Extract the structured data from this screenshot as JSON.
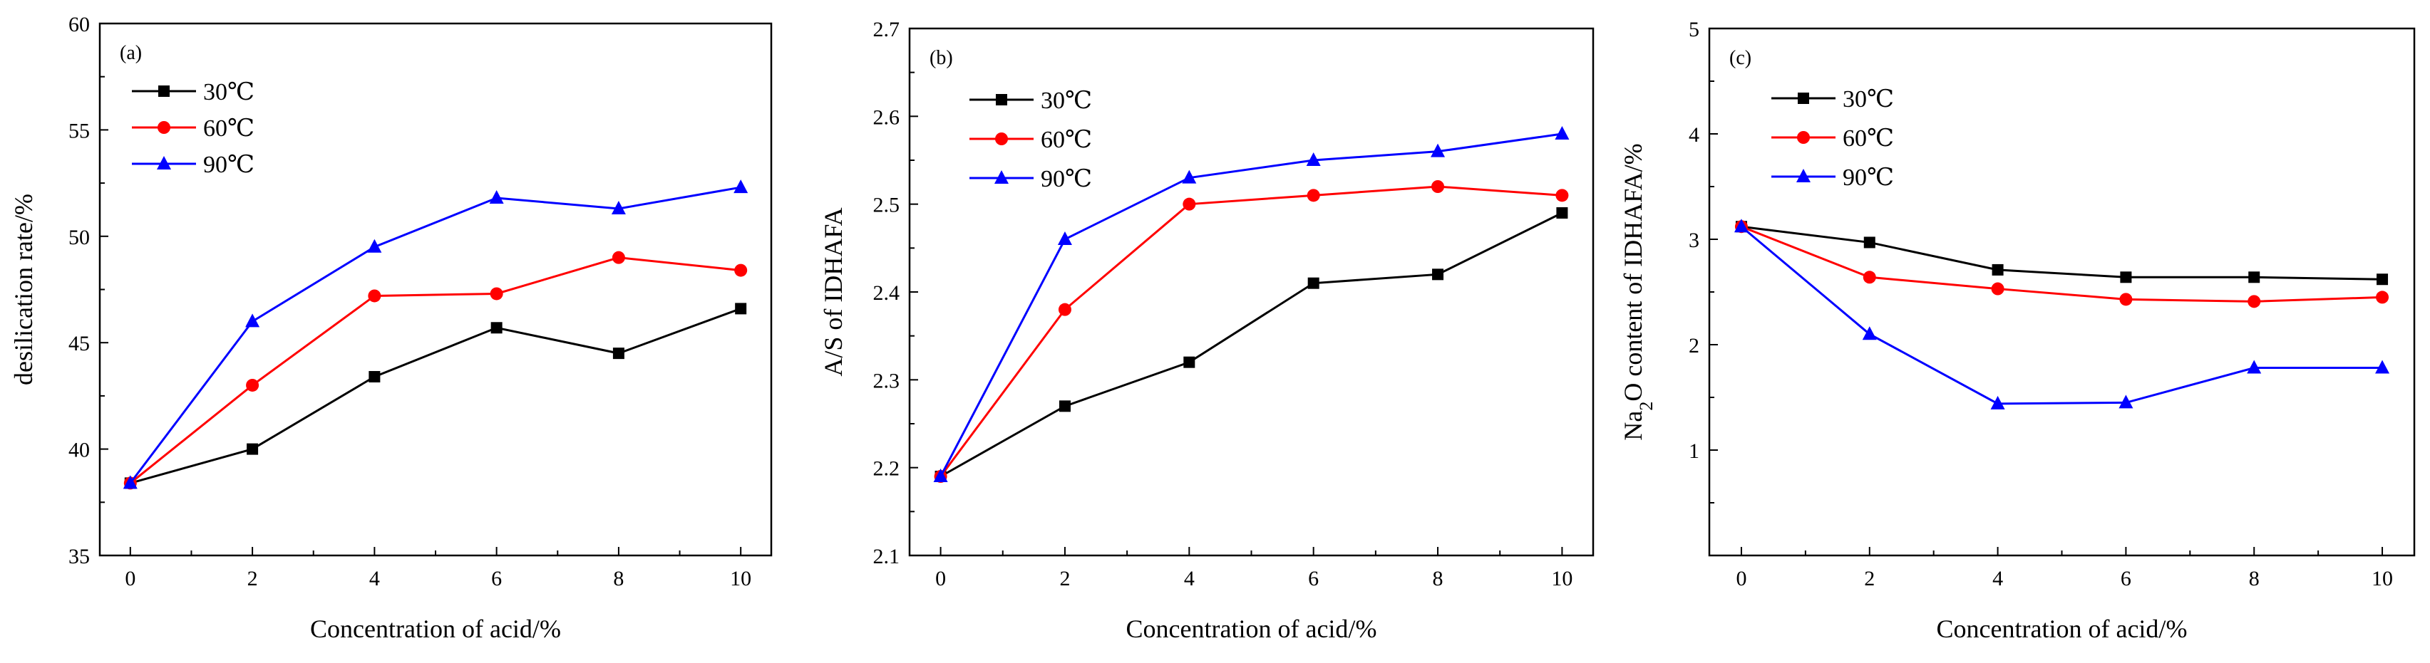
{
  "colors": {
    "s30": "#000000",
    "s60": "#ff0000",
    "s90": "#0000ff"
  },
  "chart_data": [
    {
      "type": "line",
      "panel_label": "(a)",
      "xlabel": "Concentration of acid/%",
      "ylabel": "desilication rate/%",
      "ylabel_parts": {
        "pre": "desilication rate/%",
        "sub": "",
        "post": ""
      },
      "x": [
        0,
        2,
        4,
        6,
        8,
        10
      ],
      "xlim": [
        -0.5,
        10.5
      ],
      "ylim": [
        35,
        60
      ],
      "xticks": [
        "0",
        "2",
        "4",
        "6",
        "8",
        "10"
      ],
      "yticks": [
        "35",
        "40",
        "45",
        "50",
        "55",
        "60"
      ],
      "legend_position": "top-left",
      "series": [
        {
          "name": "30℃",
          "color": "#000000",
          "marker": "square",
          "values": [
            38.4,
            40.0,
            43.4,
            45.7,
            44.5,
            46.6
          ]
        },
        {
          "name": "60℃",
          "color": "#ff0000",
          "marker": "circle",
          "values": [
            38.4,
            43.0,
            47.2,
            47.3,
            49.0,
            48.4
          ]
        },
        {
          "name": "90℃",
          "color": "#0000ff",
          "marker": "triangle",
          "values": [
            38.4,
            46.0,
            49.5,
            51.8,
            51.3,
            52.3
          ]
        }
      ]
    },
    {
      "type": "line",
      "panel_label": "(b)",
      "xlabel": "Concentration of acid/%",
      "ylabel": "A/S of IDHAFA",
      "ylabel_parts": {
        "pre": "A/S of IDHAFA",
        "sub": "",
        "post": ""
      },
      "x": [
        0,
        2,
        4,
        6,
        8,
        10
      ],
      "xlim": [
        -0.5,
        10.5
      ],
      "ylim": [
        2.1,
        2.7
      ],
      "xticks": [
        "0",
        "2",
        "4",
        "6",
        "8",
        "10"
      ],
      "yticks": [
        "2.1",
        "2.2",
        "2.3",
        "2.4",
        "2.5",
        "2.6",
        "2.7"
      ],
      "legend_position": "top-left",
      "series": [
        {
          "name": "30℃",
          "color": "#000000",
          "marker": "square",
          "values": [
            2.19,
            2.27,
            2.32,
            2.41,
            2.42,
            2.49
          ]
        },
        {
          "name": "60℃",
          "color": "#ff0000",
          "marker": "circle",
          "values": [
            2.19,
            2.38,
            2.5,
            2.51,
            2.52,
            2.51
          ]
        },
        {
          "name": "90℃",
          "color": "#0000ff",
          "marker": "triangle",
          "values": [
            2.19,
            2.46,
            2.53,
            2.55,
            2.56,
            2.58
          ]
        }
      ]
    },
    {
      "type": "line",
      "panel_label": "(c)",
      "xlabel": "Concentration of acid/%",
      "ylabel": "Na2O content of IDHAFA/%",
      "ylabel_parts": {
        "pre": "Na",
        "sub": "2",
        "post": "O content of IDHAFA/%"
      },
      "x": [
        0,
        2,
        4,
        6,
        8,
        10
      ],
      "xlim": [
        -0.5,
        10.5
      ],
      "ylim": [
        0,
        5
      ],
      "xticks": [
        "0",
        "2",
        "4",
        "6",
        "8",
        "10"
      ],
      "yticks": [
        "1",
        "2",
        "3",
        "4",
        "5"
      ],
      "legend_position": "top-left",
      "series": [
        {
          "name": "30℃",
          "color": "#000000",
          "marker": "square",
          "values": [
            3.12,
            2.97,
            2.71,
            2.64,
            2.64,
            2.62
          ]
        },
        {
          "name": "60℃",
          "color": "#ff0000",
          "marker": "circle",
          "values": [
            3.12,
            2.64,
            2.53,
            2.43,
            2.41,
            2.45
          ]
        },
        {
          "name": "90℃",
          "color": "#0000ff",
          "marker": "triangle",
          "values": [
            3.12,
            2.1,
            1.44,
            1.45,
            1.78,
            1.78
          ]
        }
      ]
    }
  ]
}
